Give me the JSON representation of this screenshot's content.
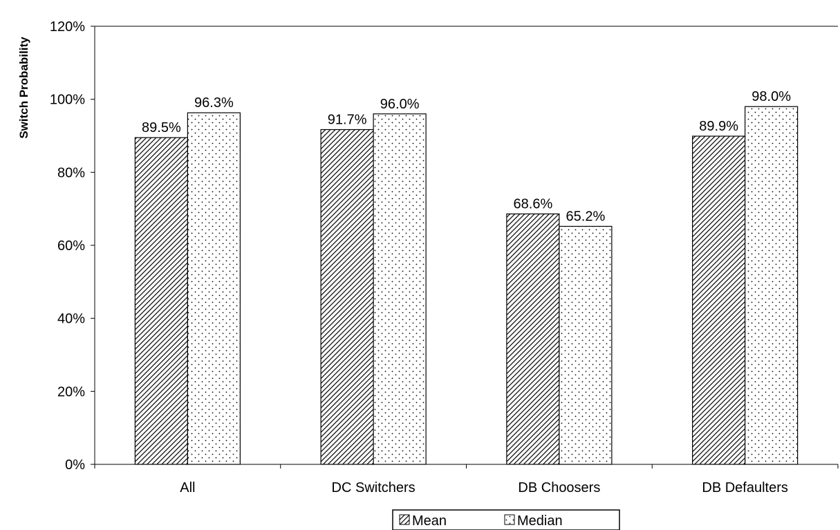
{
  "chart_data": {
    "type": "bar",
    "categories": [
      "All",
      "DC Switchers",
      "DB Choosers",
      "DB Defaulters"
    ],
    "series": [
      {
        "name": "Mean",
        "values": [
          89.5,
          91.7,
          68.6,
          89.9
        ],
        "labels": [
          "89.5%",
          "91.7%",
          "68.6%",
          "89.9%"
        ],
        "pattern": "diagonal-hatch"
      },
      {
        "name": "Median",
        "values": [
          96.3,
          96.0,
          65.2,
          98.0
        ],
        "labels": [
          "96.3%",
          "96.0%",
          "65.2%",
          "98.0%"
        ],
        "pattern": "dots"
      }
    ],
    "ylabel": "Switch Probability",
    "xlabel": "",
    "ylim": [
      0,
      120
    ],
    "yticks": [
      0,
      20,
      40,
      60,
      80,
      100,
      120
    ],
    "ytick_labels": [
      "0%",
      "20%",
      "40%",
      "60%",
      "80%",
      "100%",
      "120%"
    ],
    "grid": false,
    "legend": "bottom-center",
    "colors": {
      "bar_fill": "#ffffff",
      "bar_stroke": "#000000",
      "pattern": "#000000"
    }
  }
}
